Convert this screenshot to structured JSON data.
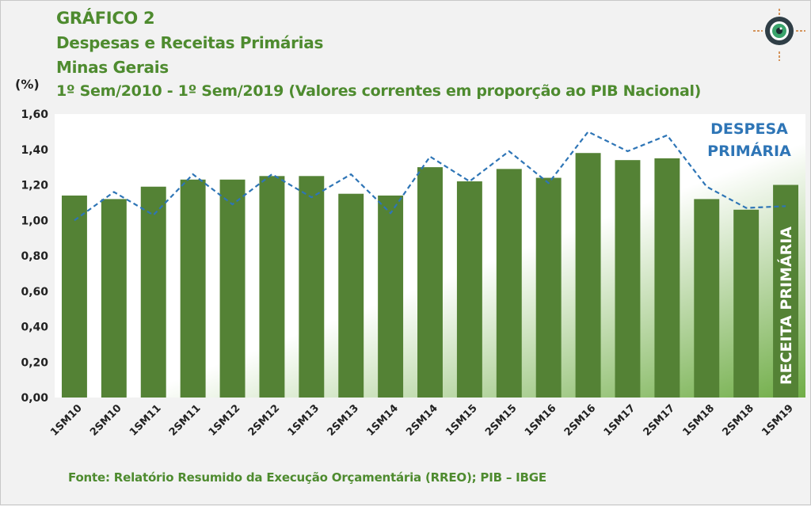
{
  "header": {
    "title": "GRÁFICO 2",
    "subtitle1": "Despesas e Receitas Primárias",
    "subtitle2": "Minas Gerais",
    "subtitle3": "1º Sem/2010 - 1º Sem/2019 (Valores correntes em proporção ao PIB Nacional)",
    "unit": "(%)"
  },
  "source": "Fonte: Relatório Resumido da Execução Orçamentária (RREO); PIB – IBGE",
  "logo": {
    "icon": "eye-target-icon"
  },
  "colors": {
    "bar": "#548235",
    "line": "#2e75b6",
    "title": "#4e8b2f",
    "gradient_start": "#ffffff",
    "gradient_end": "#70ad47"
  },
  "chart_data": {
    "type": "bar",
    "categories": [
      "1SM10",
      "2SM10",
      "1SM11",
      "2SM11",
      "1SM12",
      "2SM12",
      "1SM13",
      "2SM13",
      "1SM14",
      "2SM14",
      "1SM15",
      "2SM15",
      "1SM16",
      "2SM16",
      "1SM17",
      "2SM17",
      "1SM18",
      "2SM18",
      "1SM19"
    ],
    "series": [
      {
        "name": "RECEITA PRIMÁRIA",
        "type": "bar",
        "values": [
          1.14,
          1.12,
          1.19,
          1.23,
          1.23,
          1.25,
          1.25,
          1.15,
          1.14,
          1.3,
          1.22,
          1.29,
          1.24,
          1.38,
          1.34,
          1.35,
          1.12,
          1.06,
          1.2
        ]
      },
      {
        "name": "DESPESA PRIMÁRIA",
        "type": "line",
        "style": "dashed",
        "values": [
          1.0,
          1.16,
          1.03,
          1.26,
          1.09,
          1.26,
          1.13,
          1.26,
          1.04,
          1.36,
          1.22,
          1.39,
          1.21,
          1.5,
          1.39,
          1.48,
          1.19,
          1.07,
          1.08
        ]
      }
    ],
    "annotations": {
      "line_label": [
        "DESPESA",
        "PRIMÁRIA"
      ],
      "bar_label": "RECEITA PRIMÁRIA"
    },
    "yticks": [
      "0,00",
      "0,20",
      "0,40",
      "0,60",
      "0,80",
      "1,00",
      "1,20",
      "1,40",
      "1,60"
    ],
    "ylim": [
      0,
      1.6
    ],
    "grid": false,
    "xlabel": "",
    "ylabel": "(%)"
  }
}
